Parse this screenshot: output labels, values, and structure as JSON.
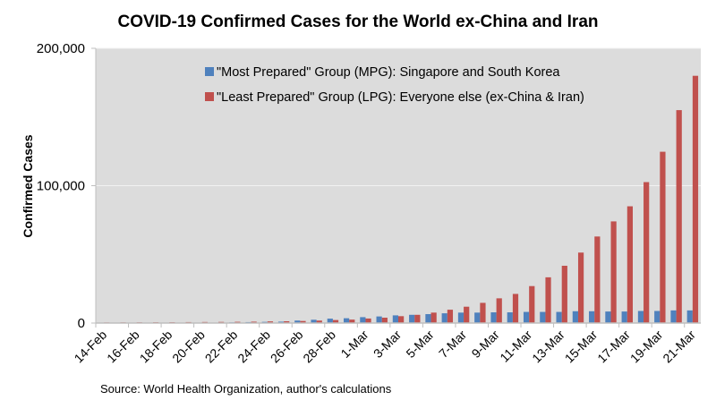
{
  "chart_data": {
    "type": "bar",
    "title": "COVID-19 Confirmed Cases for the World ex-China and Iran",
    "xlabel": "",
    "ylabel": "Confirmed Cases",
    "ylim": [
      0,
      200000
    ],
    "yticks": [
      0,
      100000,
      200000
    ],
    "ytick_labels": [
      "0",
      "100,000",
      "200,000"
    ],
    "grid": true,
    "legend_position": "top-center",
    "source": "Source: World Health Organization, author's calculations",
    "categories": [
      "14-Feb",
      "15-Feb",
      "16-Feb",
      "17-Feb",
      "18-Feb",
      "19-Feb",
      "20-Feb",
      "21-Feb",
      "22-Feb",
      "23-Feb",
      "24-Feb",
      "25-Feb",
      "26-Feb",
      "27-Feb",
      "28-Feb",
      "29-Feb",
      "1-Mar",
      "2-Mar",
      "3-Mar",
      "4-Mar",
      "5-Mar",
      "6-Mar",
      "7-Mar",
      "8-Mar",
      "9-Mar",
      "10-Mar",
      "11-Mar",
      "12-Mar",
      "13-Mar",
      "14-Mar",
      "15-Mar",
      "16-Mar",
      "17-Mar",
      "18-Mar",
      "19-Mar",
      "20-Mar",
      "21-Mar"
    ],
    "xtick_labels": [
      "14-Feb",
      "16-Feb",
      "18-Feb",
      "20-Feb",
      "22-Feb",
      "24-Feb",
      "26-Feb",
      "28-Feb",
      "1-Mar",
      "3-Mar",
      "5-Mar",
      "7-Mar",
      "9-Mar",
      "11-Mar",
      "13-Mar",
      "15-Mar",
      "17-Mar",
      "19-Mar",
      "21-Mar"
    ],
    "series": [
      {
        "name": "\"Most Prepared\" Group (MPG): Singapore and South Korea",
        "color": "#4f81bd",
        "values": [
          86,
          95,
          101,
          107,
          108,
          135,
          188,
          289,
          519,
          691,
          850,
          1000,
          1800,
          2400,
          3200,
          3500,
          4300,
          4800,
          5600,
          6000,
          6500,
          7100,
          7600,
          7600,
          7800,
          7800,
          8100,
          8100,
          8100,
          8600,
          8600,
          8400,
          8400,
          8800,
          8800,
          9200,
          9200
        ]
      },
      {
        "name": "\"Least Prepared\" Group (LPG): Everyone else (ex-China & Iran)",
        "color": "#c0504d",
        "values": [
          450,
          520,
          560,
          610,
          640,
          700,
          760,
          820,
          900,
          1000,
          1200,
          1300,
          1500,
          1800,
          2200,
          2500,
          3300,
          3900,
          5000,
          6000,
          7600,
          9700,
          11900,
          14700,
          18000,
          21200,
          26900,
          33300,
          41700,
          51300,
          63000,
          74000,
          85000,
          102600,
          124700,
          155000,
          180000
        ]
      }
    ]
  },
  "colors": {
    "plot_background": "#dcdcdc",
    "gridline": "#f2f2f2",
    "axis": "#bfbfbf"
  }
}
